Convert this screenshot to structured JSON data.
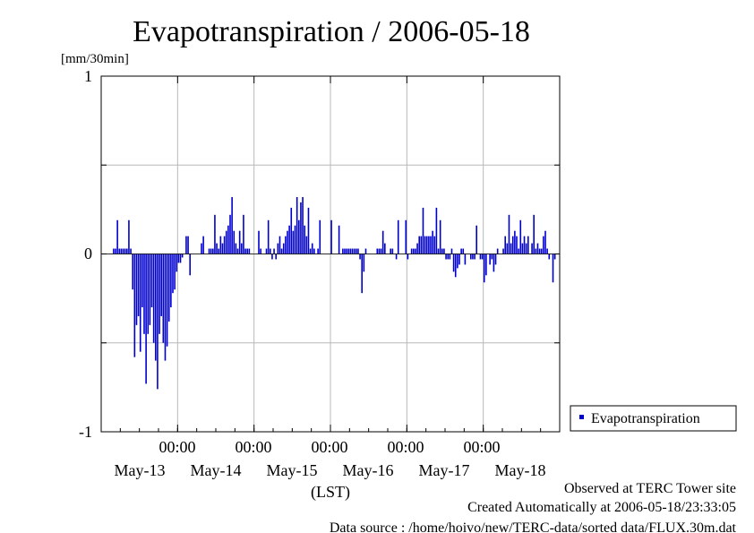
{
  "chart_data": {
    "type": "bar",
    "title": "Evapotranspiration / 2006-05-18",
    "ylabel": "[mm/30min]",
    "xlabel": "(LST)",
    "ylim": [
      -1,
      1
    ],
    "y_ticks": [
      "1",
      "0",
      "-1"
    ],
    "x_time_ticks": [
      "00:00",
      "00:00",
      "00:00",
      "00:00",
      "00:00"
    ],
    "x_date_labels": [
      "May-13",
      "May-14",
      "May-15",
      "May-16",
      "May-17",
      "May-18"
    ],
    "grid": true,
    "legend_position": "right",
    "series": [
      {
        "name": "Evapotranspiration",
        "color": "#0000cc",
        "values": [
          0,
          0,
          0,
          0,
          0,
          0,
          0.03,
          0.03,
          0.19,
          0.03,
          0.03,
          0.03,
          0.03,
          0.03,
          0.19,
          0.03,
          -0.2,
          -0.58,
          -0.4,
          -0.35,
          -0.55,
          -0.3,
          -0.45,
          -0.73,
          -0.45,
          -0.4,
          -0.3,
          -0.5,
          -0.6,
          -0.76,
          -0.45,
          -0.35,
          -0.5,
          -0.6,
          -0.52,
          -0.38,
          -0.3,
          -0.22,
          -0.2,
          -0.1,
          -0.05,
          -0.05,
          -0.02,
          0,
          0.1,
          0.1,
          -0.12,
          0,
          0,
          0,
          0,
          0,
          0.06,
          0.1,
          0,
          0,
          0.03,
          0.03,
          0.03,
          0.22,
          0.06,
          0.03,
          0.1,
          0.06,
          0.1,
          0.13,
          0.16,
          0.22,
          0.32,
          0.13,
          0.06,
          0.03,
          0.13,
          0.06,
          0.22,
          0.03,
          0.03,
          0.03,
          0,
          0,
          0,
          0,
          0.13,
          0.03,
          0,
          0,
          0.03,
          0.19,
          0.03,
          -0.03,
          0.03,
          -0.03,
          0.06,
          0.1,
          0.03,
          0.06,
          0.1,
          0.13,
          0.16,
          0.26,
          0.13,
          0.16,
          0.32,
          0.19,
          0.29,
          0.32,
          0.16,
          0.1,
          0.26,
          0.03,
          0.06,
          0.03,
          0,
          0.03,
          0.19,
          0,
          0,
          0,
          0,
          0,
          0.19,
          0,
          0,
          0,
          0.16,
          0,
          0.03,
          0.03,
          0.03,
          0.03,
          0.03,
          0.03,
          0.03,
          0.03,
          0.03,
          -0.03,
          -0.22,
          -0.1,
          0.03,
          0,
          0,
          0,
          0,
          0,
          0.03,
          0.03,
          0.03,
          0.13,
          0.06,
          0,
          0,
          0.03,
          0.03,
          0,
          -0.03,
          0.19,
          0,
          0,
          0,
          0.19,
          -0.03,
          0,
          0.03,
          0.03,
          0.03,
          0.06,
          0.1,
          0.1,
          0.26,
          0.1,
          0.1,
          0.1,
          0.1,
          0.13,
          0.1,
          0.26,
          0.03,
          0.19,
          0.03,
          0.03,
          -0.03,
          -0.03,
          -0.03,
          0.03,
          -0.1,
          -0.13,
          -0.08,
          -0.06,
          0.03,
          0.03,
          -0.06,
          0,
          0,
          -0.03,
          -0.03,
          -0.03,
          0.16,
          0,
          -0.03,
          -0.03,
          -0.16,
          -0.12,
          0,
          -0.06,
          -0.03,
          -0.1,
          -0.06,
          0.03,
          0,
          0,
          0.03,
          0.1,
          0.06,
          0.22,
          0.06,
          0.1,
          0.13,
          0.1,
          0.03,
          0.19,
          0.06,
          0.1,
          0.06,
          0.1,
          0,
          0.06,
          0.22,
          0.03,
          0.06,
          0.03,
          0.03,
          0.1,
          0.13,
          0.03,
          -0.03,
          0,
          -0.16,
          -0.03,
          0,
          0
        ]
      }
    ]
  },
  "footer": {
    "observed": "Observed at TERC Tower site",
    "created": "Created Automatically at 2006-05-18/23:33:05",
    "source": "Data source : /home/hoivo/new/TERC-data/sorted  data/FLUX.30m.dat"
  }
}
